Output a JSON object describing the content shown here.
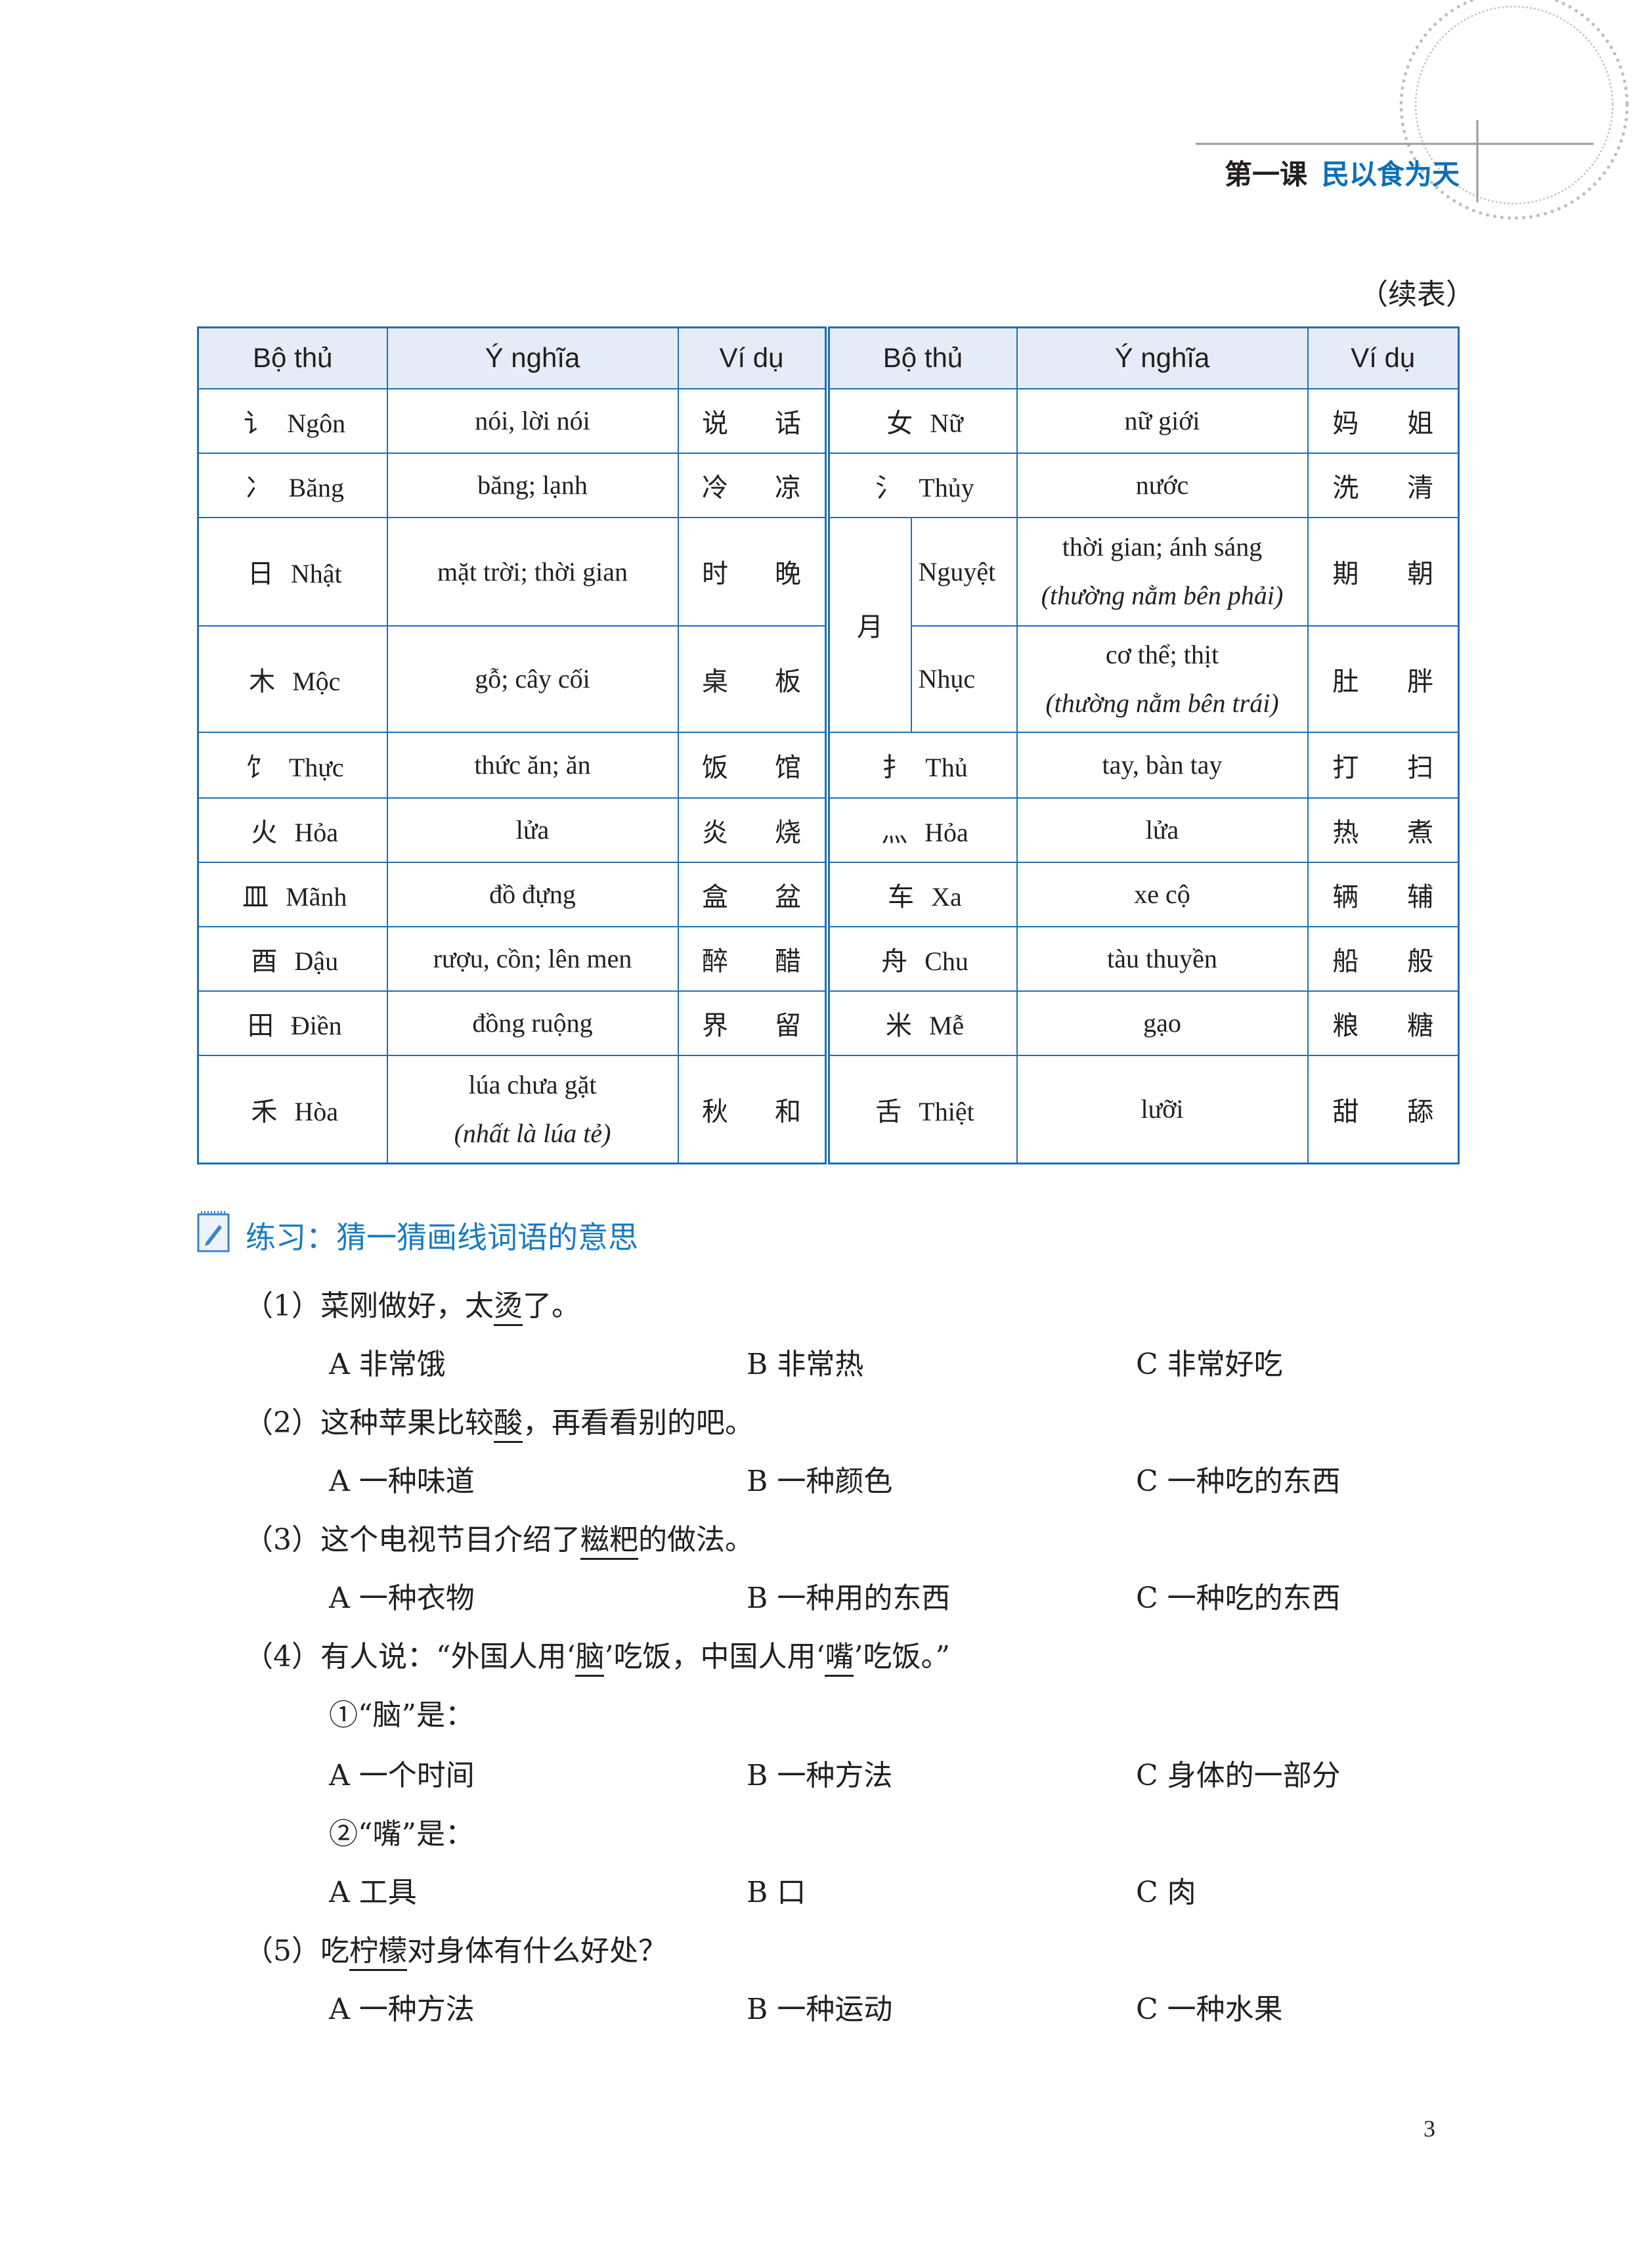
{
  "header": {
    "lesson_number": "第一课",
    "lesson_title": "民以食为天",
    "accent": "#0b6fb8"
  },
  "continued_label": "（续表）",
  "table": {
    "border_color": "#1f6fb4",
    "header_bg": "#e6ecf7",
    "headers": [
      "Bộ thủ",
      "Ý nghĩa",
      "Ví dụ",
      "Bộ thủ",
      "Ý nghĩa",
      "Ví dụ"
    ],
    "left": [
      {
        "radical": "讠",
        "name": "Ngôn",
        "meaning": "nói, lời nói",
        "examples": [
          "说",
          "话"
        ]
      },
      {
        "radical": "冫",
        "name": "Băng",
        "meaning": "băng; lạnh",
        "examples": [
          "冷",
          "凉"
        ]
      },
      {
        "radical": "日",
        "name": "Nhật",
        "meaning": "mặt trời; thời gian",
        "examples": [
          "时",
          "晚"
        ]
      },
      {
        "radical": "木",
        "name": "Mộc",
        "meaning": "gỗ; cây cối",
        "examples": [
          "桌",
          "板"
        ]
      },
      {
        "radical": "饣",
        "name": "Thực",
        "meaning": "thức ăn; ăn",
        "examples": [
          "饭",
          "馆"
        ]
      },
      {
        "radical": "火",
        "name": "Hỏa",
        "meaning": "lửa",
        "examples": [
          "炎",
          "烧"
        ]
      },
      {
        "radical": "皿",
        "name": "Mãnh",
        "meaning": "đồ đựng",
        "examples": [
          "盒",
          "盆"
        ]
      },
      {
        "radical": "酉",
        "name": "Dậu",
        "meaning": "rượu, cồn; lên men",
        "examples": [
          "醉",
          "醋"
        ]
      },
      {
        "radical": "田",
        "name": "Điền",
        "meaning": "đồng ruộng",
        "examples": [
          "界",
          "留"
        ]
      },
      {
        "radical": "禾",
        "name": "Hòa",
        "meaning": "lúa chưa gặt",
        "meaning_note": "(nhất là lúa tẻ)",
        "examples": [
          "秋",
          "和"
        ]
      }
    ],
    "right": [
      {
        "radical": "女",
        "name": "Nữ",
        "meaning": "nữ giới",
        "examples": [
          "妈",
          "姐"
        ]
      },
      {
        "radical": "氵",
        "name": "Thủy",
        "meaning": "nước",
        "examples": [
          "洗",
          "清"
        ]
      },
      {
        "radical": "月",
        "name": "Nguyệt",
        "meaning": "thời gian; ánh sáng",
        "meaning_note": "(thường nằm bên phải)",
        "examples": [
          "期",
          "朝"
        ]
      },
      {
        "radical": "月",
        "name": "Nhục",
        "meaning": "cơ thể; thịt",
        "meaning_note": "(thường nằm bên trái)",
        "examples": [
          "肚",
          "胖"
        ]
      },
      {
        "radical": "扌",
        "name": "Thủ",
        "meaning": "tay, bàn tay",
        "examples": [
          "打",
          "扫"
        ]
      },
      {
        "radical": "灬",
        "name": "Hỏa",
        "meaning": "lửa",
        "examples": [
          "热",
          "煮"
        ]
      },
      {
        "radical": "车",
        "name": "Xa",
        "meaning": "xe cộ",
        "examples": [
          "辆",
          "辅"
        ]
      },
      {
        "radical": "舟",
        "name": "Chu",
        "meaning": "tàu thuyền",
        "examples": [
          "船",
          "般"
        ]
      },
      {
        "radical": "米",
        "name": "Mễ",
        "meaning": "gạo",
        "examples": [
          "粮",
          "糖"
        ]
      },
      {
        "radical": "舌",
        "name": "Thiệt",
        "meaning": "lưỡi",
        "examples": [
          "甜",
          "舔"
        ]
      }
    ]
  },
  "exercise": {
    "icon": "notepad-pencil-icon",
    "title": "练习：猜一猜画线词语的意思",
    "title_color": "#1a7bc0",
    "lines": [
      {
        "kind": "question",
        "segments": [
          {
            "t": "（1）菜刚做好，太"
          },
          {
            "t": "烫",
            "u": true
          },
          {
            "t": "了。"
          }
        ]
      },
      {
        "kind": "options",
        "options": [
          "A 非常饿",
          "B 非常热",
          "C 非常好吃"
        ]
      },
      {
        "kind": "question",
        "segments": [
          {
            "t": "（2）这种苹果比较"
          },
          {
            "t": "酸",
            "u": true
          },
          {
            "t": "，再看看别的吧。"
          }
        ]
      },
      {
        "kind": "options",
        "options": [
          "A 一种味道",
          "B 一种颜色",
          "C 一种吃的东西"
        ]
      },
      {
        "kind": "question",
        "segments": [
          {
            "t": "（3）这个电视节目介绍了"
          },
          {
            "t": "糍粑",
            "u": true
          },
          {
            "t": "的做法。"
          }
        ]
      },
      {
        "kind": "options",
        "options": [
          "A 一种衣物",
          "B 一种用的东西",
          "C 一种吃的东西"
        ]
      },
      {
        "kind": "question",
        "segments": [
          {
            "t": "（4）有人说：“外国人用‘"
          },
          {
            "t": "脑",
            "u": true
          },
          {
            "t": "’吃饭，中国人用‘"
          },
          {
            "t": "嘴",
            "u": true
          },
          {
            "t": "’吃饭。”"
          }
        ]
      },
      {
        "kind": "sub",
        "segments": [
          {
            "t": "①“脑”是："
          }
        ]
      },
      {
        "kind": "options",
        "options": [
          "A 一个时间",
          "B 一种方法",
          "C 身体的一部分"
        ]
      },
      {
        "kind": "sub",
        "segments": [
          {
            "t": "②“嘴”是："
          }
        ]
      },
      {
        "kind": "options",
        "options": [
          "A 工具",
          "B 口",
          "C 肉"
        ]
      },
      {
        "kind": "question",
        "segments": [
          {
            "t": "（5）吃"
          },
          {
            "t": "柠檬",
            "u": true
          },
          {
            "t": "对身体有什么好处？"
          }
        ]
      },
      {
        "kind": "options",
        "options": [
          "A 一种方法",
          "B 一种运动",
          "C 一种水果"
        ]
      }
    ]
  },
  "page_number": "3"
}
